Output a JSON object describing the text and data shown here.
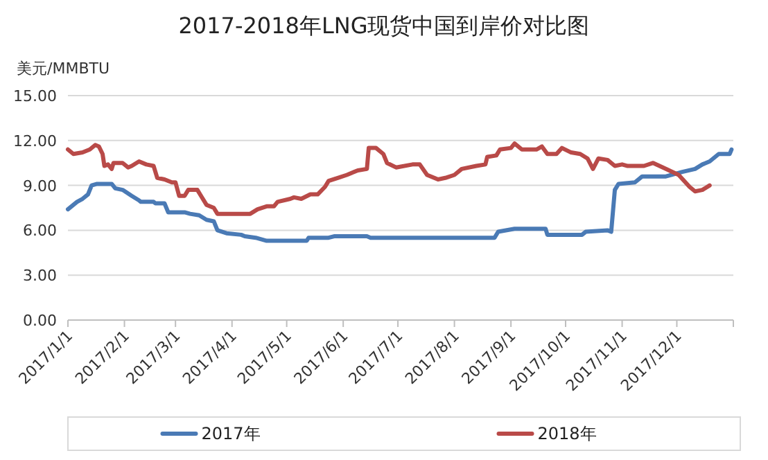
{
  "chart_data": {
    "type": "line",
    "title": "2017-2018年LNG现货中国到岸价对比图",
    "ylabel": "美元/MMBTU",
    "grid": "y",
    "legend": "bottom",
    "xlim": [
      "2017-01-01",
      "2018-01-01"
    ],
    "xticks": [
      {
        "value": "2017-01-01",
        "label": "2017/1/1"
      },
      {
        "value": "2017-02-01",
        "label": "2017/2/1"
      },
      {
        "value": "2017-03-01",
        "label": "2017/3/1"
      },
      {
        "value": "2017-04-01",
        "label": "2017/4/1"
      },
      {
        "value": "2017-05-01",
        "label": "2017/5/1"
      },
      {
        "value": "2017-06-01",
        "label": "2017/6/1"
      },
      {
        "value": "2017-07-01",
        "label": "2017/7/1"
      },
      {
        "value": "2017-08-01",
        "label": "2017/8/1"
      },
      {
        "value": "2017-09-01",
        "label": "2017/9/1"
      },
      {
        "value": "2017-10-01",
        "label": "2017/10/1"
      },
      {
        "value": "2017-11-01",
        "label": "2017/11/1"
      },
      {
        "value": "2017-12-01",
        "label": "2017/12/1"
      },
      {
        "value": "2018-01-01",
        "label": null
      }
    ],
    "ylim": [
      0,
      15
    ],
    "yticks": [
      {
        "value": 0,
        "label": "0.00"
      },
      {
        "value": 3,
        "label": "3.00"
      },
      {
        "value": 6,
        "label": "6.00"
      },
      {
        "value": 9,
        "label": "9.00"
      },
      {
        "value": 12,
        "label": "12.00"
      },
      {
        "value": 15,
        "label": "15.00"
      }
    ],
    "series": [
      {
        "name": "2017年",
        "color": "#4a7ab5",
        "x": [
          "2017-01-01",
          "2017-01-06",
          "2017-01-09",
          "2017-01-12",
          "2017-01-14",
          "2017-01-17",
          "2017-01-25",
          "2017-01-27",
          "2017-01-31",
          "2017-02-05",
          "2017-02-09",
          "2017-02-10",
          "2017-02-17",
          "2017-02-18",
          "2017-02-23",
          "2017-02-25",
          "2017-03-06",
          "2017-03-09",
          "2017-03-14",
          "2017-03-18",
          "2017-03-22",
          "2017-03-24",
          "2017-03-29",
          "2017-04-06",
          "2017-04-08",
          "2017-04-14",
          "2017-04-20",
          "2017-05-12",
          "2017-05-13",
          "2017-05-24",
          "2017-05-27",
          "2017-06-14",
          "2017-06-16",
          "2017-06-26",
          "2017-08-23",
          "2017-08-25",
          "2017-09-03",
          "2017-09-20",
          "2017-09-21",
          "2017-10-10",
          "2017-10-12",
          "2017-10-24",
          "2017-10-26",
          "2017-10-28",
          "2017-10-30",
          "2017-11-08",
          "2017-11-12",
          "2017-11-25",
          "2017-12-04",
          "2017-12-11",
          "2017-12-15",
          "2017-12-19",
          "2017-12-24",
          "2017-12-30",
          "2017-12-31"
        ],
        "values": [
          7.4,
          7.9,
          8.1,
          8.4,
          9.0,
          9.1,
          9.1,
          8.8,
          8.7,
          8.3,
          8.0,
          7.9,
          7.9,
          7.8,
          7.8,
          7.2,
          7.2,
          7.1,
          7.0,
          6.7,
          6.6,
          6.0,
          5.8,
          5.7,
          5.6,
          5.5,
          5.3,
          5.3,
          5.5,
          5.5,
          5.6,
          5.6,
          5.5,
          5.5,
          5.5,
          5.9,
          6.1,
          6.1,
          5.7,
          5.7,
          5.9,
          6.0,
          5.9,
          8.7,
          9.1,
          9.2,
          9.6,
          9.6,
          9.9,
          10.1,
          10.4,
          10.6,
          11.1,
          11.1,
          11.4
        ]
      },
      {
        "name": "2018年",
        "color": "#b94a48",
        "x": [
          "2017-01-01",
          "2017-01-04",
          "2017-01-09",
          "2017-01-13",
          "2017-01-16",
          "2017-01-18",
          "2017-01-20",
          "2017-01-21",
          "2017-01-23",
          "2017-01-25",
          "2017-01-26",
          "2017-01-31",
          "2017-02-03",
          "2017-02-05",
          "2017-02-09",
          "2017-02-13",
          "2017-02-17",
          "2017-02-19",
          "2017-02-23",
          "2017-02-27",
          "2017-03-01",
          "2017-03-03",
          "2017-03-06",
          "2017-03-08",
          "2017-03-13",
          "2017-03-15",
          "2017-03-18",
          "2017-03-22",
          "2017-03-24",
          "2017-04-11",
          "2017-04-15",
          "2017-04-20",
          "2017-04-24",
          "2017-04-26",
          "2017-05-03",
          "2017-05-05",
          "2017-05-09",
          "2017-05-14",
          "2017-05-18",
          "2017-05-22",
          "2017-05-24",
          "2017-05-29",
          "2017-06-03",
          "2017-06-09",
          "2017-06-14",
          "2017-06-15",
          "2017-06-19",
          "2017-06-23",
          "2017-06-25",
          "2017-06-30",
          "2017-07-09",
          "2017-07-13",
          "2017-07-17",
          "2017-07-23",
          "2017-07-27",
          "2017-08-01",
          "2017-08-05",
          "2017-08-13",
          "2017-08-18",
          "2017-08-19",
          "2017-08-24",
          "2017-08-26",
          "2017-09-01",
          "2017-09-03",
          "2017-09-07",
          "2017-09-15",
          "2017-09-18",
          "2017-09-21",
          "2017-09-26",
          "2017-09-29",
          "2017-10-04",
          "2017-10-09",
          "2017-10-13",
          "2017-10-16",
          "2017-10-19",
          "2017-10-24",
          "2017-10-28",
          "2017-11-01",
          "2017-11-04",
          "2017-11-13",
          "2017-11-18",
          "2017-11-25",
          "2017-12-02",
          "2017-12-08",
          "2017-12-11",
          "2017-12-15",
          "2017-12-19"
        ],
        "values": [
          11.4,
          11.1,
          11.2,
          11.4,
          11.7,
          11.6,
          11.1,
          10.3,
          10.4,
          10.1,
          10.5,
          10.5,
          10.2,
          10.3,
          10.6,
          10.4,
          10.3,
          9.5,
          9.4,
          9.2,
          9.2,
          8.3,
          8.3,
          8.7,
          8.7,
          8.3,
          7.7,
          7.5,
          7.1,
          7.1,
          7.4,
          7.6,
          7.6,
          7.9,
          8.1,
          8.2,
          8.1,
          8.4,
          8.4,
          8.9,
          9.3,
          9.5,
          9.7,
          10.0,
          10.1,
          11.5,
          11.5,
          11.1,
          10.5,
          10.2,
          10.4,
          10.4,
          9.7,
          9.4,
          9.5,
          9.7,
          10.1,
          10.3,
          10.4,
          10.9,
          11.0,
          11.4,
          11.5,
          11.8,
          11.4,
          11.4,
          11.6,
          11.1,
          11.1,
          11.5,
          11.2,
          11.1,
          10.8,
          10.1,
          10.8,
          10.7,
          10.3,
          10.4,
          10.3,
          10.3,
          10.5,
          10.1,
          9.7,
          8.9,
          8.6,
          8.7,
          9.0
        ]
      }
    ]
  }
}
